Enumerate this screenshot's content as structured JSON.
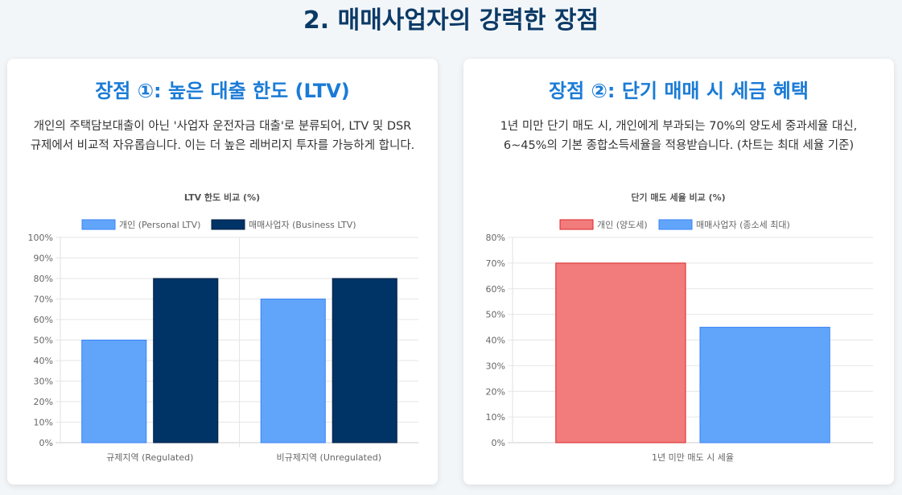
{
  "page": {
    "title": "2. 매매사업자의 강력한 장점"
  },
  "cards": [
    {
      "title": "장점 ①: 높은 대출 한도 (LTV)",
      "description": "개인의 주택담보대출이 아닌 '사업자 운전자금 대출'로 분류되어, LTV 및 DSR 규제에서 비교적 자유롭습니다. 이는 더 높은 레버리지 투자를 가능하게 합니다."
    },
    {
      "title": "장점 ②: 단기 매매 시 세금 혜택",
      "description": "1년 미만 단기 매도 시, 개인에게 부과되는 70%의 양도세 중과세율 대신, 6~45%의 기본 종합소득세율을 적용받습니다. (차트는 최대 세율 기준)"
    }
  ],
  "chart_data": [
    {
      "type": "bar",
      "title": "LTV 한도 비교 (%)",
      "categories": [
        "규제지역 (Regulated)",
        "비규제지역 (Unregulated)"
      ],
      "series": [
        {
          "name": "개인 (Personal LTV)",
          "values": [
            50,
            70
          ],
          "color": "#60a5fa",
          "border": "#3b82f6"
        },
        {
          "name": "매매사업자 (Business LTV)",
          "values": [
            80,
            80
          ],
          "color": "#003366",
          "border": "#002244"
        }
      ],
      "ylim": [
        0,
        100
      ],
      "yticks": [
        0,
        10,
        20,
        30,
        40,
        50,
        60,
        70,
        80,
        90,
        100
      ],
      "tick_suffix": "%",
      "legend": "top",
      "grid": true
    },
    {
      "type": "bar",
      "title": "단기 매도 세율 비교 (%)",
      "categories": [
        "1년 미만 매도 시 세율"
      ],
      "series": [
        {
          "name": "개인 (양도세)",
          "values": [
            70
          ],
          "color": "#f27b7b",
          "border": "#dc2626"
        },
        {
          "name": "매매사업자 (종소세 최대)",
          "values": [
            45
          ],
          "color": "#60a5fa",
          "border": "#3b82f6"
        }
      ],
      "ylim": [
        0,
        80
      ],
      "yticks": [
        0,
        10,
        20,
        30,
        40,
        50,
        60,
        70,
        80
      ],
      "tick_suffix": "%",
      "legend": "top",
      "grid": true
    }
  ]
}
